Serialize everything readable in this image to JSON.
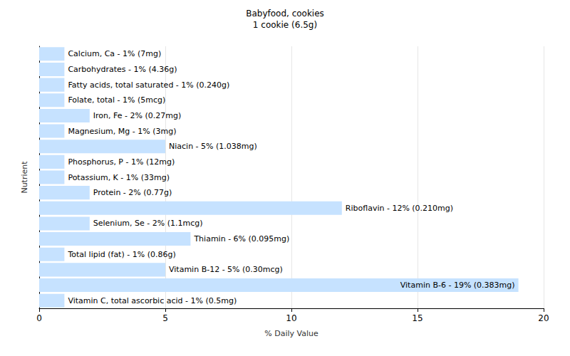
{
  "chart_data": {
    "type": "bar",
    "title": "Babyfood, cookies",
    "subtitle": "1 cookie (6.5g)",
    "x_label": "% Daily Value",
    "y_label": "Nutrient",
    "orientation": "horizontal",
    "categories": [
      "Calcium, Ca",
      "Carbohydrates",
      "Fatty acids, total saturated",
      "Folate, total",
      "Iron, Fe",
      "Magnesium, Mg",
      "Niacin",
      "Phosphorus, P",
      "Potassium, K",
      "Protein",
      "Riboflavin",
      "Selenium, Se",
      "Thiamin",
      "Total lipid (fat)",
      "Vitamin B-12",
      "Vitamin B-6",
      "Vitamin C, total ascorbic acid"
    ],
    "values": [
      1,
      1,
      1,
      1,
      2,
      1,
      5,
      1,
      1,
      2,
      12,
      2,
      6,
      1,
      5,
      19,
      1
    ],
    "value_labels": [
      "Calcium, Ca - 1% (7mg)",
      "Carbohydrates - 1% (4.36g)",
      "Fatty acids, total saturated - 1% (0.240g)",
      "Folate, total - 1% (5mcg)",
      "Iron, Fe - 2% (0.27mg)",
      "Magnesium, Mg - 1% (3mg)",
      "Niacin - 5% (1.038mg)",
      "Phosphorus, P - 1% (12mg)",
      "Potassium, K - 1% (33mg)",
      "Protein - 2% (0.77g)",
      "Riboflavin - 12% (0.210mg)",
      "Selenium, Se - 2% (1.1mcg)",
      "Thiamin - 6% (0.095mg)",
      "Total lipid (fat) - 1% (0.86g)",
      "Vitamin B-12 - 5% (0.30mcg)",
      "Vitamin B-6 - 19% (0.383mg)",
      "Vitamin C, total ascorbic acid - 1% (0.5mg)"
    ],
    "data_labels": true,
    "color": "#c6e2ff",
    "xlim": [
      0,
      20
    ],
    "xticks": [
      0,
      5,
      10,
      15,
      20
    ],
    "grid": true,
    "tick_labels": "x"
  }
}
